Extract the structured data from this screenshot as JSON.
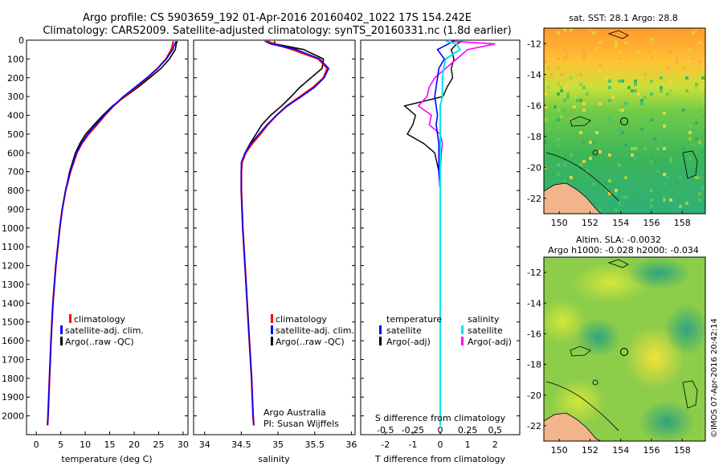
{
  "header": {
    "line1": "Argo profile: CS 5903659_192 01-Apr-2016 20160402_1022 17S 154.242E",
    "line2": "Climatology: CARS2009. Satellite-adjusted climatology: synTS_20160331.nc (1.8d earlier)"
  },
  "colors": {
    "climatology": "#ff0000",
    "satellite": "#0000ff",
    "argo": "#000000",
    "salinity_sat": "#00e5ee",
    "salinity_argo": "#ff00ff"
  },
  "chart_data": [
    {
      "type": "line",
      "id": "temperature",
      "xlabel": "temperature (deg C)",
      "ylabel": "",
      "xlim": [
        -2,
        31
      ],
      "ylim": [
        2100,
        0
      ],
      "xticks": [
        0,
        5,
        10,
        15,
        20,
        25,
        30
      ],
      "yticks": [
        0,
        100,
        200,
        300,
        400,
        500,
        600,
        700,
        800,
        900,
        1000,
        1100,
        1200,
        1300,
        1400,
        1500,
        1600,
        1700,
        1800,
        1900,
        2000
      ],
      "legend": [
        "climatology",
        "satellite-adj. clim.",
        "Argo(..raw -QC)"
      ],
      "depth": [
        5,
        20,
        50,
        100,
        150,
        200,
        250,
        300,
        350,
        400,
        450,
        500,
        550,
        600,
        700,
        800,
        900,
        1000,
        1200,
        1400,
        1600,
        1800,
        2000,
        2050
      ],
      "series": [
        {
          "name": "climatology",
          "values": [
            28.0,
            27.9,
            27.6,
            26.5,
            24.8,
            22.7,
            20.4,
            18.0,
            15.8,
            14.0,
            12.4,
            10.7,
            9.3,
            8.3,
            7.0,
            6.0,
            5.3,
            4.8,
            4.0,
            3.4,
            3.0,
            2.7,
            2.4,
            2.3
          ]
        },
        {
          "name": "satellite-adj. clim.",
          "values": [
            28.6,
            28.3,
            27.9,
            26.6,
            24.8,
            22.6,
            20.2,
            17.8,
            15.7,
            13.9,
            12.2,
            10.5,
            9.2,
            8.2,
            6.9,
            6.0,
            5.3,
            4.8,
            4.0,
            3.4,
            3.0,
            2.7,
            2.4,
            2.3
          ]
        },
        {
          "name": "Argo(..raw -QC)",
          "values": [
            28.8,
            28.6,
            28.4,
            27.2,
            25.5,
            23.2,
            20.8,
            18.2,
            15.6,
            13.6,
            11.8,
            10.1,
            8.9,
            8.0,
            6.8,
            6.0,
            5.3,
            4.8,
            4.0,
            3.4,
            3.0,
            2.7,
            2.4,
            2.3
          ]
        }
      ]
    },
    {
      "type": "line",
      "id": "salinity",
      "xlabel": "salinity",
      "xlim": [
        33.85,
        36.05
      ],
      "ylim": [
        2100,
        0
      ],
      "xticks": [
        34,
        34.5,
        35,
        35.5,
        36
      ],
      "legend": [
        "climatology",
        "satellite-adj. clim.",
        "Argo(..raw -QC)"
      ],
      "annotation": [
        "Argo Australia",
        "PI: Susan Wijffels"
      ],
      "depth": [
        5,
        20,
        50,
        100,
        150,
        200,
        250,
        300,
        350,
        400,
        450,
        500,
        550,
        600,
        650,
        700,
        800,
        900,
        1000,
        1200,
        1400,
        1600,
        1800,
        2000,
        2050
      ],
      "series": [
        {
          "name": "climatology",
          "values": [
            34.85,
            34.95,
            35.2,
            35.55,
            35.67,
            35.62,
            35.48,
            35.3,
            35.12,
            34.98,
            34.86,
            34.76,
            34.65,
            34.56,
            34.51,
            34.5,
            34.5,
            34.51,
            34.52,
            34.55,
            34.58,
            34.61,
            34.64,
            34.66,
            34.67
          ]
        },
        {
          "name": "satellite-adj. clim.",
          "values": [
            34.82,
            34.9,
            35.25,
            35.57,
            35.69,
            35.63,
            35.5,
            35.32,
            35.13,
            34.98,
            34.85,
            34.74,
            34.63,
            34.55,
            34.5,
            34.5,
            34.5,
            34.51,
            34.52,
            34.55,
            34.58,
            34.61,
            34.64,
            34.66,
            34.67
          ]
        },
        {
          "name": "Argo(..raw -QC)",
          "values": [
            34.95,
            34.96,
            35.35,
            35.62,
            35.6,
            35.45,
            35.3,
            35.18,
            35.05,
            34.9,
            34.78,
            34.7,
            34.62,
            34.55,
            34.51,
            34.5,
            34.5,
            34.51,
            34.52,
            34.55,
            34.58,
            34.61,
            34.64,
            34.66,
            34.67
          ]
        }
      ]
    },
    {
      "type": "line",
      "id": "difference",
      "xlabel": "T difference from climatology",
      "xlabel_top": "S difference from climatology",
      "xlim_T": [
        -2.9,
        2.9
      ],
      "xlim_S": [
        -0.725,
        0.725
      ],
      "ylim": [
        2100,
        0
      ],
      "xticks_T": [
        -2,
        -1,
        0,
        1,
        2
      ],
      "xticks_S": [
        -0.5,
        -0.25,
        0,
        0.25,
        0.5
      ],
      "legend_T": [
        "temperature",
        "satellite",
        "Argo(-adj)"
      ],
      "legend_S": [
        "salinity",
        "satellite",
        "Argo(-adj)"
      ],
      "depth": [
        5,
        20,
        50,
        100,
        150,
        200,
        250,
        300,
        350,
        400,
        450,
        500,
        550,
        600,
        700,
        800,
        900,
        1000,
        1500,
        2000,
        2050
      ],
      "series": [
        {
          "name": "temperature satellite",
          "values": [
            0.5,
            0.3,
            -0.1,
            0.15,
            -0.05,
            -0.1,
            -0.15,
            -0.2,
            -0.15,
            -0.1,
            -0.15,
            -0.1,
            -0.05,
            -0.05,
            -0.05,
            0,
            0,
            0,
            0,
            0,
            0
          ]
        },
        {
          "name": "temperature Argo(-adj)",
          "values": [
            0.8,
            0.6,
            0.4,
            0.5,
            0.4,
            0.45,
            0.25,
            0.1,
            -1.3,
            -0.9,
            -1.0,
            -1.2,
            -0.6,
            -0.2,
            -0.05,
            0,
            0,
            0,
            0,
            0,
            0
          ]
        },
        {
          "name": "salinity satellite",
          "values": [
            0.05,
            0.15,
            0.18,
            0.05,
            0.03,
            0.02,
            0.02,
            0.02,
            0,
            0,
            0,
            0,
            0,
            0,
            0,
            0,
            0,
            0,
            0,
            0,
            0
          ]
        },
        {
          "name": "salinity Argo(-adj)",
          "values": [
            0.1,
            0.5,
            0.25,
            0.15,
            0.05,
            -0.05,
            -0.1,
            -0.12,
            -0.2,
            -0.08,
            -0.1,
            0,
            0.02,
            0.01,
            0,
            0,
            0,
            0,
            0,
            0,
            0
          ]
        }
      ]
    },
    {
      "type": "heatmap",
      "id": "sst-map",
      "title": "sat. SST: 28.1  Argo: 28.8",
      "xlim": [
        149,
        159.5
      ],
      "ylim": [
        -23,
        -11
      ],
      "xticks": [
        150,
        152,
        154,
        156,
        158
      ],
      "yticks": [
        -12,
        -14,
        -16,
        -18,
        -20,
        -22
      ]
    },
    {
      "type": "heatmap",
      "id": "sla-map",
      "title": "Altim. SLA: -0.0032",
      "subtitle": "Argo h1000: -0.028 h2000: -0.034",
      "xlim": [
        149,
        159.5
      ],
      "ylim": [
        -23,
        -11
      ],
      "xticks": [
        150,
        152,
        154,
        156,
        158
      ],
      "yticks": [
        -12,
        -14,
        -16,
        -18,
        -20,
        -22
      ]
    }
  ],
  "footer": {
    "stamp": "©IMOS 07-Apr-2016 20:42:14"
  }
}
